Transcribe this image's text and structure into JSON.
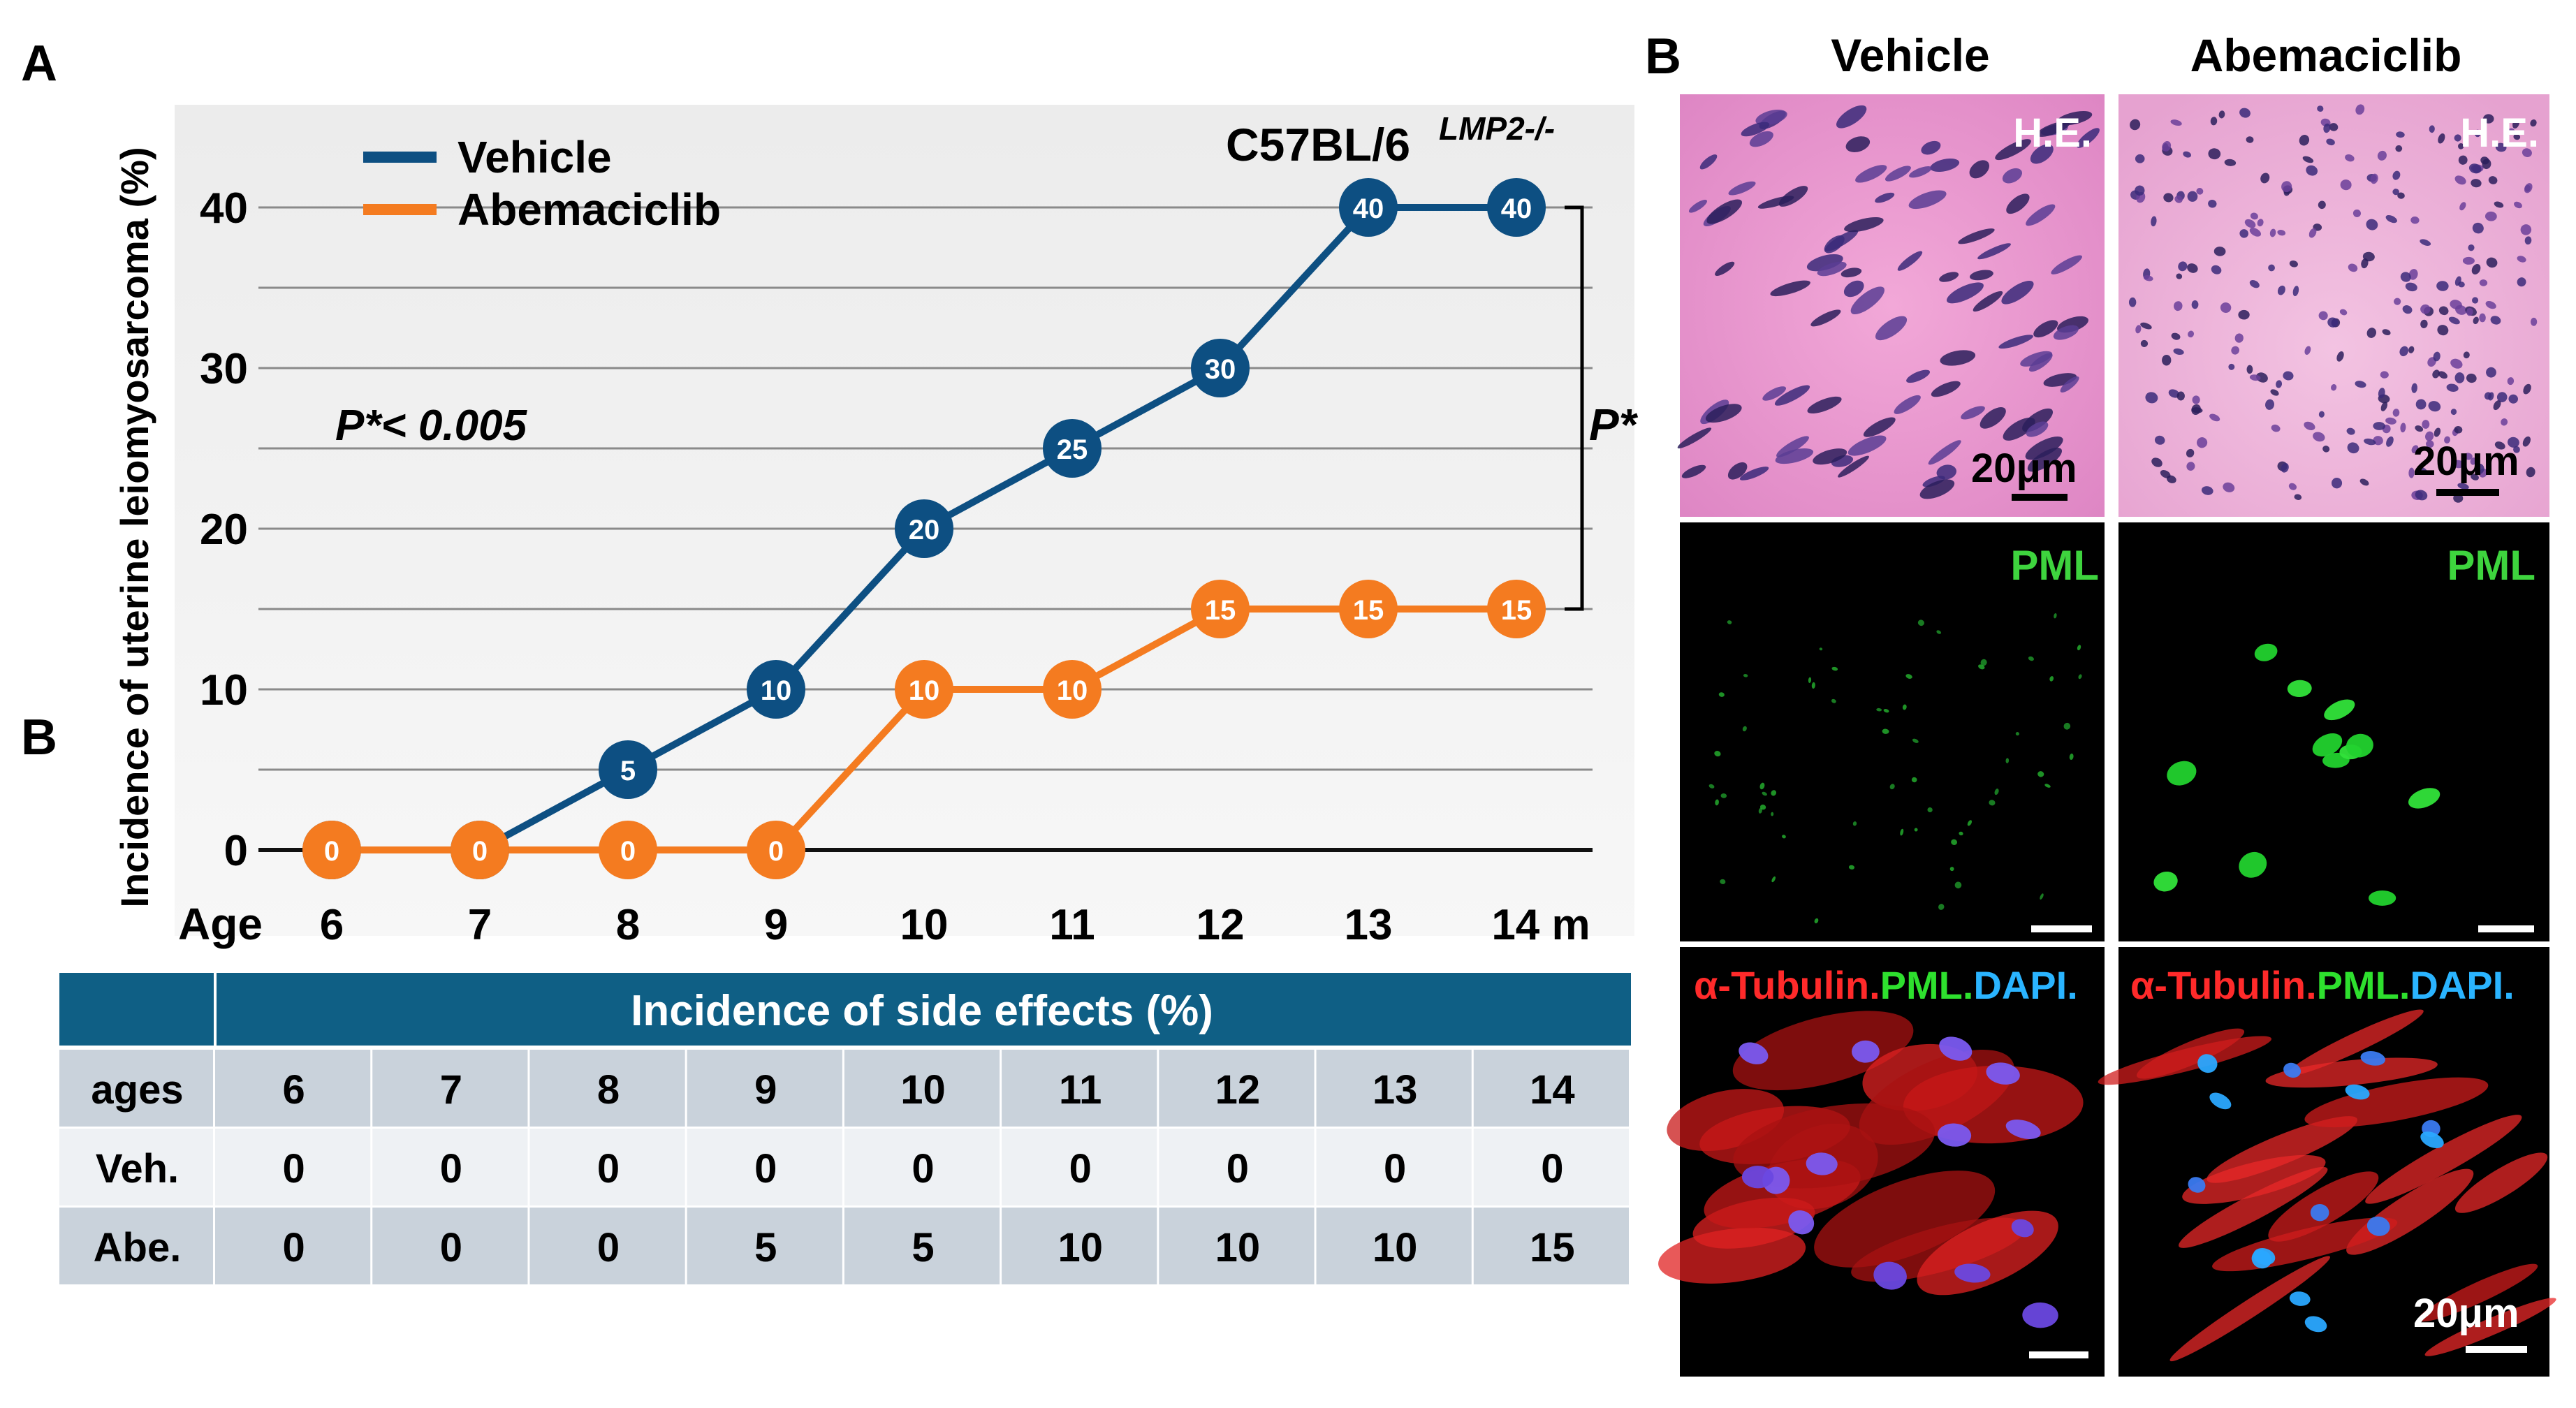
{
  "panel_labels": {
    "a": "A",
    "b_left": "B",
    "b_right": "B"
  },
  "chart_data": {
    "type": "line",
    "strain_label": "C57BL/6",
    "strain_superscript": "LMP2-/-",
    "ylabel": "Incidence of uterine leiomyosarcoma (%)",
    "x_axis_title": "Age",
    "x": [
      6,
      7,
      8,
      9,
      10,
      11,
      12,
      13,
      14
    ],
    "x_tick_labels": [
      "6",
      "7",
      "8",
      "9",
      "10",
      "11",
      "12",
      "13",
      "14 m"
    ],
    "ylim": [
      0,
      40
    ],
    "y_ticks": [
      0,
      10,
      20,
      30,
      40
    ],
    "series": [
      {
        "name": "Vehicle",
        "color": "#0d4f82",
        "values": [
          0,
          0,
          5,
          10,
          20,
          25,
          30,
          40,
          40
        ]
      },
      {
        "name": "Abemaciclib",
        "color": "#f47b20",
        "values": [
          0,
          0,
          0,
          0,
          10,
          10,
          15,
          15,
          15
        ]
      }
    ],
    "annotations": {
      "p_value": "P*< 0.005",
      "bracket_label": "P*"
    },
    "legend_position": "top-left"
  },
  "table": {
    "title": "Incidence of side effects (%)",
    "header_color": "#0f5f85",
    "row_label_header": "ages",
    "ages": [
      "6",
      "7",
      "8",
      "9",
      "10",
      "11",
      "12",
      "13",
      "14"
    ],
    "rows": [
      {
        "label": "Veh.",
        "values": [
          "0",
          "0",
          "0",
          "0",
          "0",
          "0",
          "0",
          "0",
          "0"
        ]
      },
      {
        "label": "Abe.",
        "values": [
          "0",
          "0",
          "0",
          "5",
          "5",
          "10",
          "10",
          "10",
          "15"
        ]
      }
    ]
  },
  "micrographs": {
    "columns": [
      "Vehicle",
      "Abemaciclib"
    ],
    "he_label": "H.E.",
    "pml_label": "PML",
    "stain_label_red": "α-Tubulin.",
    "stain_label_green": "PML.",
    "stain_label_blue": "DAPI.",
    "scale_label": "20μm"
  }
}
